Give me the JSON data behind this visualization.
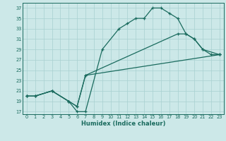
{
  "xlabel": "Humidex (Indice chaleur)",
  "bg_color": "#cce8e8",
  "grid_color": "#a8d0d0",
  "line_color": "#1a6b5e",
  "xlim": [
    -0.5,
    23.5
  ],
  "ylim": [
    16.5,
    38
  ],
  "xticks": [
    0,
    1,
    2,
    3,
    4,
    5,
    6,
    7,
    8,
    9,
    10,
    11,
    12,
    13,
    14,
    15,
    16,
    17,
    18,
    19,
    20,
    21,
    22,
    23
  ],
  "yticks": [
    17,
    19,
    21,
    23,
    25,
    27,
    29,
    31,
    33,
    35,
    37
  ],
  "line1_x": [
    0,
    1,
    3,
    5,
    6,
    7,
    9,
    11,
    12,
    13,
    14,
    15,
    16,
    17,
    18,
    19,
    20,
    21,
    22,
    23
  ],
  "line1_y": [
    20,
    20,
    21,
    19,
    17,
    17,
    29,
    33,
    34,
    35,
    35,
    37,
    37,
    36,
    35,
    32,
    31,
    29,
    28,
    28
  ],
  "line2_x": [
    0,
    1,
    3,
    5,
    6,
    7,
    18,
    19,
    20,
    21,
    23
  ],
  "line2_y": [
    20,
    20,
    21,
    19,
    18,
    24,
    32,
    32,
    31,
    29,
    28
  ],
  "line3_x": [
    0,
    1,
    3,
    5,
    6,
    7,
    23
  ],
  "line3_y": [
    20,
    20,
    21,
    19,
    18,
    24,
    28
  ]
}
